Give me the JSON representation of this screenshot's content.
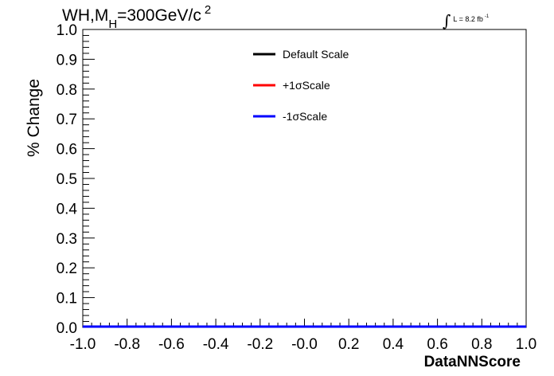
{
  "title": {
    "prefix": "WH,M",
    "subscript": "H",
    "suffix": "=300GeV/c",
    "superscript": "2"
  },
  "luminosity": {
    "integral": "∫",
    "text": "L = 8.2 fb",
    "superscript": "-1"
  },
  "chart_data": {
    "type": "line",
    "xlabel": "DataNNScore",
    "ylabel": "% Change",
    "xlim": [
      -1.0,
      1.0
    ],
    "ylim": [
      0.0,
      1.0
    ],
    "x_ticks": [
      "-1.0",
      "-0.8",
      "-0.6",
      "-0.4",
      "-0.2",
      "-0.0",
      "0.2",
      "0.4",
      "0.6",
      "0.8",
      "1.0"
    ],
    "y_ticks": [
      "0.0",
      "0.1",
      "0.2",
      "0.3",
      "0.4",
      "0.5",
      "0.6",
      "0.7",
      "0.8",
      "0.9",
      "1.0"
    ],
    "grid": false,
    "legend_position": "top-center",
    "series": [
      {
        "name": "Default Scale",
        "color": "#000000",
        "x": [
          -1.0,
          1.0
        ],
        "values": [
          0.0,
          0.0
        ]
      },
      {
        "name": "+1σScale",
        "color": "#ff0000",
        "x": [
          -1.0,
          1.0
        ],
        "values": [
          0.0,
          0.0
        ]
      },
      {
        "name": "-1σScale",
        "color": "#0000ff",
        "x": [
          -1.0,
          1.0
        ],
        "values": [
          0.0,
          0.0
        ]
      }
    ]
  }
}
